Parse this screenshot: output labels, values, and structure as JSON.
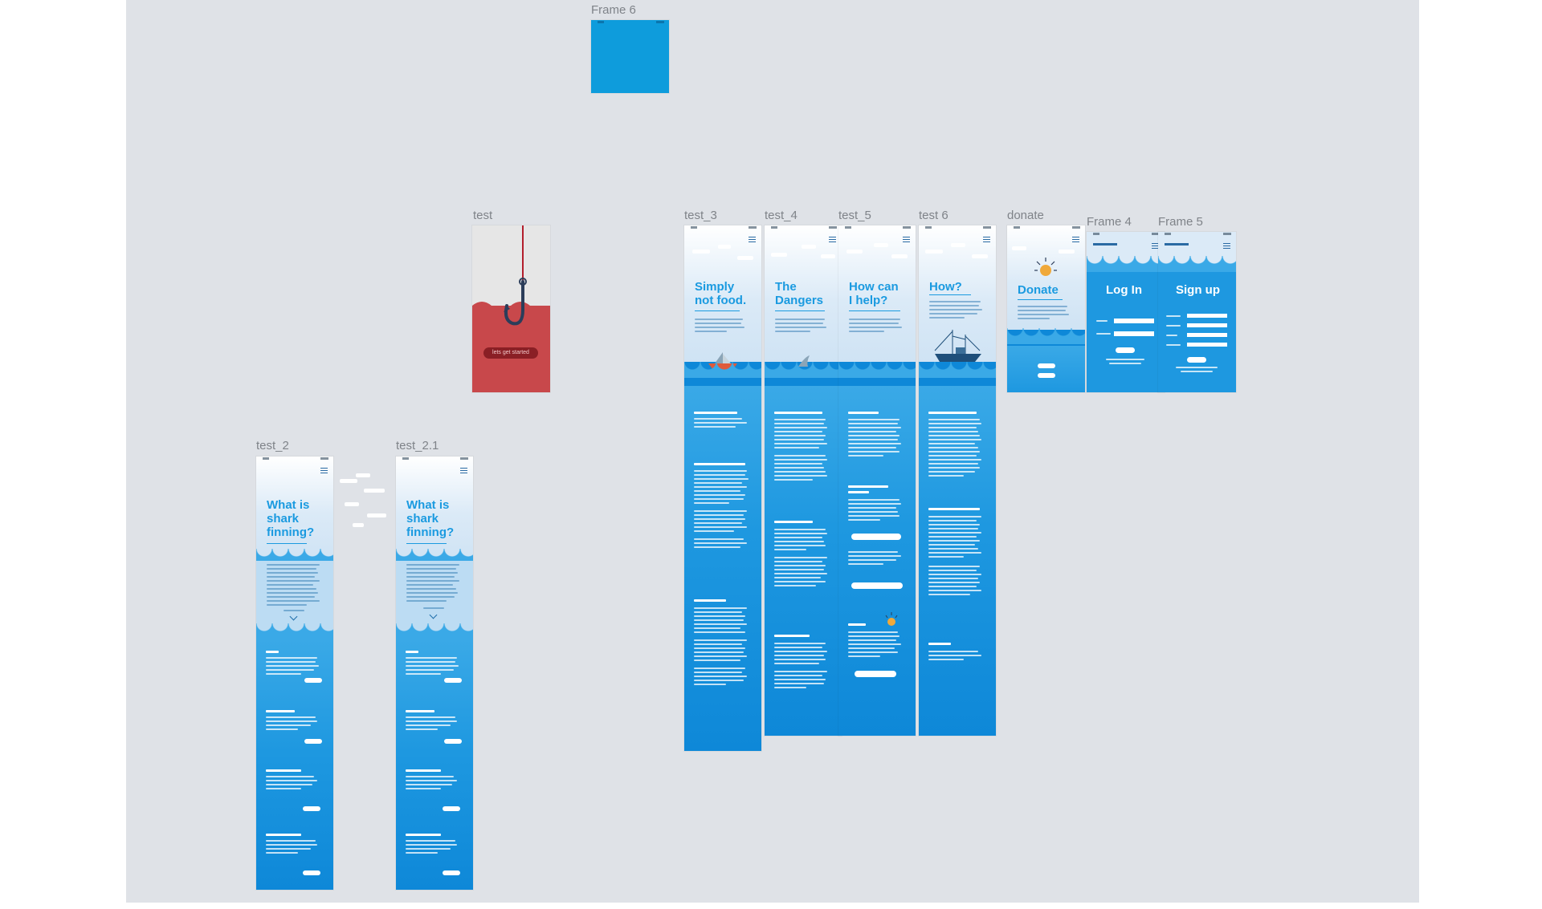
{
  "canvas": {
    "background": "#dfe2e7"
  },
  "frames": {
    "frame6": {
      "label": "Frame 6",
      "fill": "#0e9cdc"
    },
    "test": {
      "label": "test",
      "fill": "#c8484b",
      "cta": "lets get started"
    },
    "test_3": {
      "label": "test_3",
      "heading": "Simply not food.",
      "heading_line1": "Simply",
      "heading_line2": "not food."
    },
    "test_4": {
      "label": "test_4",
      "heading_line1": "The",
      "heading_line2": "Dangers"
    },
    "test_5": {
      "label": "test_5",
      "heading_line1": "How can",
      "heading_line2": "I help?"
    },
    "test_6": {
      "label": "test 6",
      "heading_line1": "How?"
    },
    "donate": {
      "label": "donate",
      "heading_line1": "Donate"
    },
    "frame4": {
      "label": "Frame 4",
      "heading_line1": "Log In"
    },
    "frame5": {
      "label": "Frame 5",
      "heading_line1": "Sign up"
    },
    "test_2": {
      "label": "test_2",
      "heading_line1": "What is",
      "heading_line2": "shark",
      "heading_line3": "finning?"
    },
    "test_2_1": {
      "label": "test_2.1",
      "heading_line1": "What is",
      "heading_line2": "shark",
      "heading_line3": "finning?"
    }
  },
  "colors": {
    "ocean_top": "#3aa9e7",
    "ocean_deep": "#0e88d8",
    "title_blue": "#1a9ae0",
    "sky": "#dbeaf7",
    "label_gray": "#7f8389"
  }
}
